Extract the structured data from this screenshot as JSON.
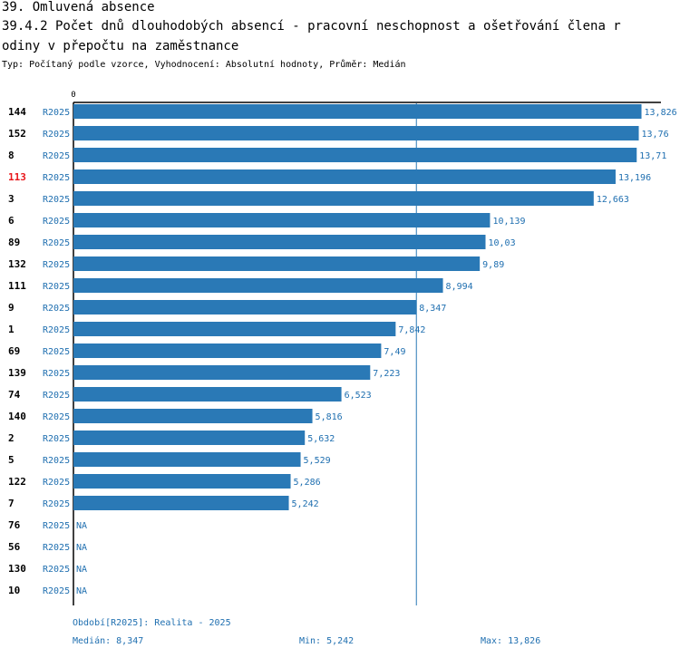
{
  "heading": {
    "section": "39. Omluvená absence",
    "title_line1": "39.4.2 Počet dnů dlouhodobých absencí - pracovní neschopnost a ošetřování člena r",
    "title_line2": "odiny v přepočtu na zaměstnance",
    "subtitle": "Typ: Počítaný podle vzorce, Vyhodnocení: Absolutní hodnoty, Průměr: Medián"
  },
  "colors": {
    "bar": "#2a79b6",
    "value_text": "#1f6fb0",
    "highlight": "#e8161a",
    "axis": "#000000",
    "median_line": "#2a79b6"
  },
  "chart_data": {
    "type": "bar",
    "orientation": "horizontal",
    "axis_zero_label": "0",
    "xlim": [
      0,
      14.3
    ],
    "series_label": "R2025",
    "missing_label": "NA",
    "highlight_category": "113",
    "categories": [
      "144",
      "152",
      "8",
      "113",
      "3",
      "6",
      "89",
      "132",
      "111",
      "9",
      "1",
      "69",
      "139",
      "74",
      "140",
      "2",
      "5",
      "122",
      "7",
      "76",
      "56",
      "130",
      "10"
    ],
    "values": [
      13.826,
      13.76,
      13.71,
      13.196,
      12.663,
      10.139,
      10.03,
      9.89,
      8.994,
      8.347,
      7.842,
      7.49,
      7.223,
      6.523,
      5.816,
      5.632,
      5.529,
      5.286,
      5.242,
      null,
      null,
      null,
      null
    ],
    "value_labels": [
      "13,826",
      "13,76",
      "13,71",
      "13,196",
      "12,663",
      "10,139",
      "10,03",
      "9,89",
      "8,994",
      "8,347",
      "7,842",
      "7,49",
      "7,223",
      "6,523",
      "5,816",
      "5,632",
      "5,529",
      "5,286",
      "5,242",
      "NA",
      "NA",
      "NA",
      "NA"
    ],
    "median": 8.347
  },
  "footer": {
    "period": "Období[R2025]: Realita - 2025",
    "median": "Medián: 8,347",
    "min": "Min: 5,242",
    "max": "Max: 13,826"
  }
}
